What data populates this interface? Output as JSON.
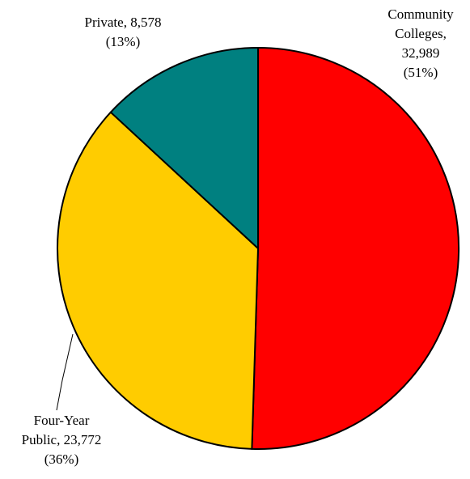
{
  "chart_data": {
    "type": "pie",
    "slices": [
      {
        "category": "Community Colleges",
        "value": 32989,
        "percent": 51,
        "color": "#ff0000",
        "label_lines": [
          "Community",
          "Colleges,",
          "32,989",
          "(51%)"
        ]
      },
      {
        "category": "Four-Year Public",
        "value": 23772,
        "percent": 36,
        "color": "#ffcc00",
        "label_lines": [
          "Four-Year",
          "Public, 23,772",
          "(36%)"
        ]
      },
      {
        "category": "Private",
        "value": 8578,
        "percent": 13,
        "color": "#008080",
        "label_lines": [
          "Private, 8,578",
          "(13%)"
        ]
      }
    ],
    "start_angle_deg": 0,
    "direction": "clockwise",
    "legend": "none"
  }
}
